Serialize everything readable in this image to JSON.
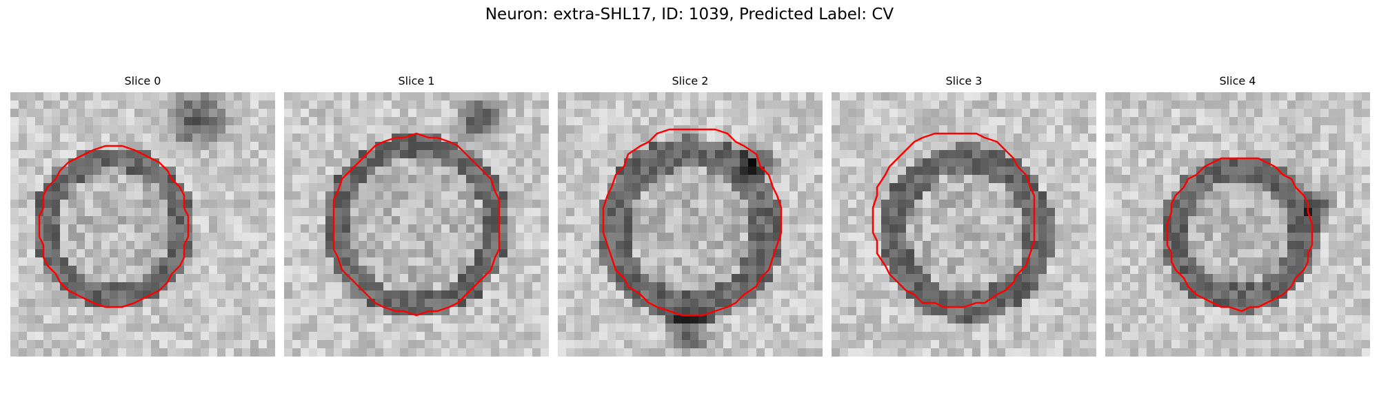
{
  "figure": {
    "title": "Neuron: extra-SHL17, ID: 1039, Predicted Label: CV"
  },
  "panels": [
    {
      "title": "Slice 0"
    },
    {
      "title": "Slice 1"
    },
    {
      "title": "Slice 2"
    },
    {
      "title": "Slice 3"
    },
    {
      "title": "Slice 4"
    }
  ],
  "colors": {
    "contour": "#ff0000",
    "background": "#ffffff"
  }
}
